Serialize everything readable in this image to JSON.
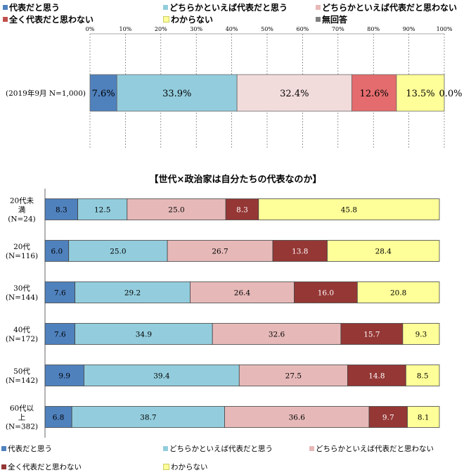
{
  "categories": [
    {
      "key": "rep",
      "label": "代表だと思う",
      "color": "#4f81bd"
    },
    {
      "key": "somerep",
      "label": "どちらかといえば代表だと思う",
      "color": "#93cddd"
    },
    {
      "key": "somenot",
      "label": "どちらかといえば代表だと思わない",
      "color": "#e6b9b8"
    },
    {
      "key": "not",
      "label": "全く代表だと思わない",
      "color": "#953735"
    },
    {
      "key": "dk",
      "label": "わからない",
      "color": "#ffff99"
    },
    {
      "key": "na",
      "label": "無回答",
      "color": "#7f7f7f"
    }
  ],
  "chart_data": [
    {
      "type": "bar",
      "orientation": "horizontal",
      "stacked": true,
      "xlim": [
        0,
        100
      ],
      "ticks": [
        "0%",
        "10%",
        "20%",
        "30%",
        "40%",
        "50%",
        "60%",
        "70%",
        "80%",
        "90%",
        "100%"
      ],
      "categories": [
        "(2019年9月 N=1,000)"
      ],
      "series": [
        {
          "name": "代表だと思う",
          "values": [
            7.6
          ]
        },
        {
          "name": "どちらかといえば代表だと思う",
          "values": [
            33.9
          ]
        },
        {
          "name": "どちらかといえば代表だと思わない",
          "values": [
            32.4
          ]
        },
        {
          "name": "全く代表だと思わない",
          "values": [
            12.6
          ]
        },
        {
          "name": "わからない",
          "values": [
            13.5
          ]
        },
        {
          "name": "無回答",
          "values": [
            0.0
          ]
        }
      ],
      "value_labels": [
        "7.6%",
        "33.9%",
        "32.4%",
        "12.6%",
        "13.5%",
        "0.0%"
      ],
      "legend": "top"
    },
    {
      "type": "bar",
      "orientation": "horizontal",
      "stacked": true,
      "title": "【世代×政治家は自分たちの代表なのか】",
      "categories": [
        [
          "20代未",
          "満",
          "(N=24)"
        ],
        [
          "20代",
          "(N=116)"
        ],
        [
          "30代",
          "(N=144)"
        ],
        [
          "40代",
          "(N=172)"
        ],
        [
          "50代",
          "(N=142)"
        ],
        [
          "60代以",
          "上",
          "(N=382)"
        ]
      ],
      "series": [
        {
          "name": "代表だと思う",
          "values": [
            8.3,
            6.0,
            7.6,
            7.6,
            9.9,
            6.8
          ]
        },
        {
          "name": "どちらかといえば代表だと思う",
          "values": [
            12.5,
            25.0,
            29.2,
            34.9,
            39.4,
            38.7
          ]
        },
        {
          "name": "どちらかといえば代表だと思わない",
          "values": [
            25.0,
            26.7,
            26.4,
            32.6,
            27.5,
            36.6
          ]
        },
        {
          "name": "全く代表だと思わない",
          "values": [
            8.3,
            13.8,
            16.0,
            15.7,
            14.8,
            9.7
          ]
        },
        {
          "name": "わからない",
          "values": [
            45.8,
            28.4,
            20.8,
            9.3,
            8.5,
            8.1
          ]
        }
      ],
      "legend": "bottom"
    }
  ]
}
